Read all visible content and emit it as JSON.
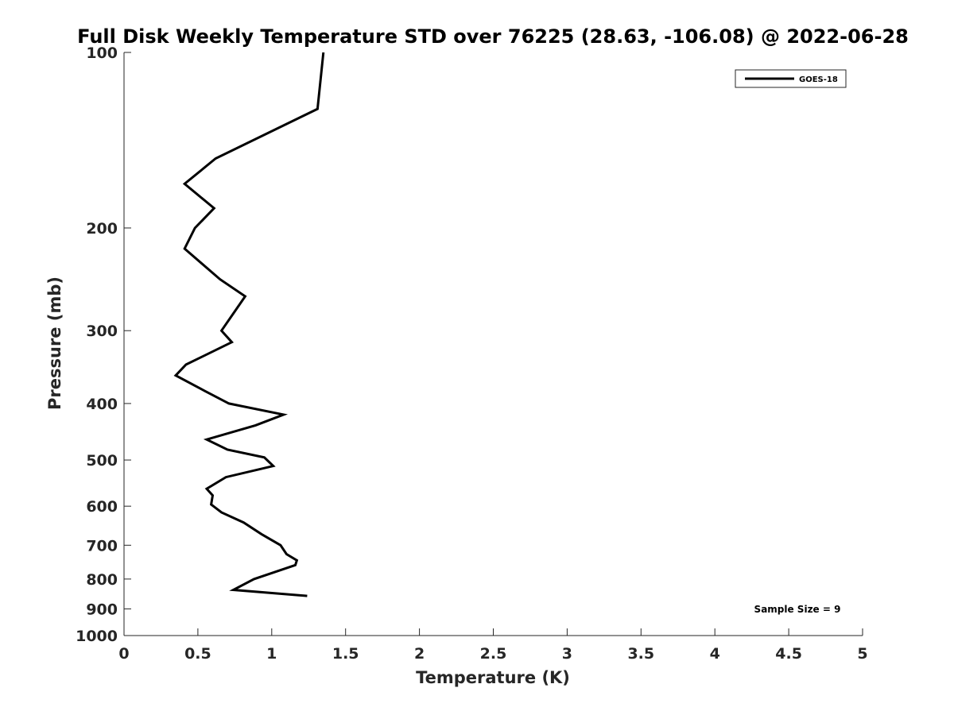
{
  "chart_data": {
    "type": "line",
    "title": "Full Disk Weekly Temperature STD over 76225 (28.63, -106.08) @ 2022-06-28",
    "xlabel": "Temperature (K)",
    "ylabel": "Pressure (mb)",
    "xlim": [
      0,
      5
    ],
    "ylim": [
      100,
      1000
    ],
    "y_scale": "log",
    "y_reversed": true,
    "xticks": [
      "0",
      "0.5",
      "1",
      "1.5",
      "2",
      "2.5",
      "3",
      "3.5",
      "4",
      "4.5",
      "5"
    ],
    "yticks": [
      "100",
      "200",
      "300",
      "400",
      "500",
      "600",
      "700",
      "800",
      "900",
      "1000"
    ],
    "grid": false,
    "legend_position": "top-right",
    "annotation": "Sample Size = 9",
    "series": [
      {
        "name": "GOES-18",
        "color": "#000000",
        "points": [
          [
            1.35,
            100
          ],
          [
            1.31,
            125
          ],
          [
            0.62,
            152
          ],
          [
            0.41,
            168
          ],
          [
            0.61,
            185
          ],
          [
            0.48,
            200
          ],
          [
            0.41,
            217
          ],
          [
            0.65,
            245
          ],
          [
            0.82,
            262
          ],
          [
            0.75,
            278
          ],
          [
            0.66,
            300
          ],
          [
            0.73,
            314
          ],
          [
            0.42,
            343
          ],
          [
            0.35,
            358
          ],
          [
            0.55,
            381
          ],
          [
            0.71,
            400
          ],
          [
            1.08,
            418
          ],
          [
            0.89,
            436
          ],
          [
            0.56,
            461
          ],
          [
            0.7,
            480
          ],
          [
            0.95,
            495
          ],
          [
            1.01,
            512
          ],
          [
            0.69,
            535
          ],
          [
            0.56,
            560
          ],
          [
            0.6,
            575
          ],
          [
            0.59,
            596
          ],
          [
            0.66,
            615
          ],
          [
            0.81,
            640
          ],
          [
            0.93,
            670
          ],
          [
            1.06,
            700
          ],
          [
            1.1,
            725
          ],
          [
            1.17,
            743
          ],
          [
            1.16,
            757
          ],
          [
            0.88,
            800
          ],
          [
            0.74,
            835
          ],
          [
            1.24,
            855
          ]
        ]
      }
    ]
  }
}
